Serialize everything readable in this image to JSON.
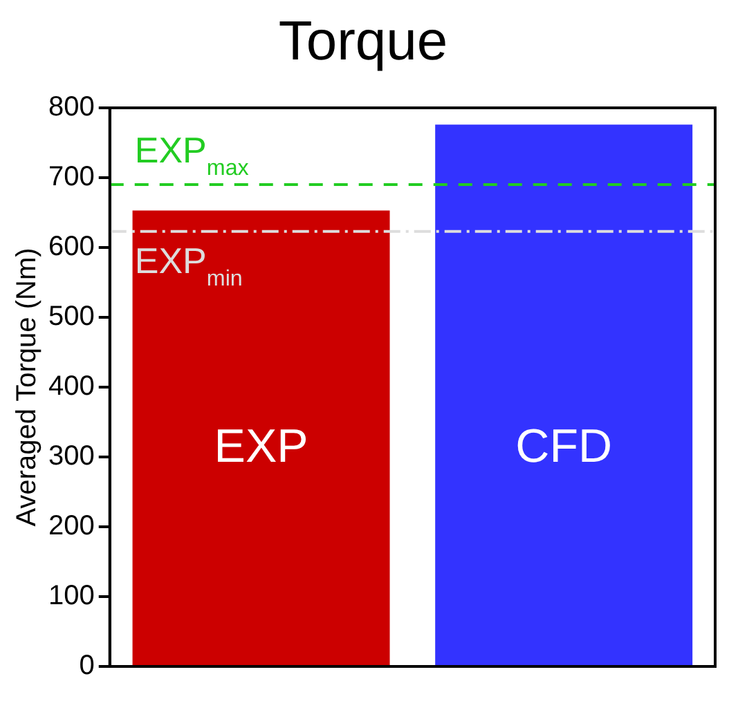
{
  "chart_data": {
    "type": "bar",
    "title": "Torque",
    "ylabel": "Averaged Torque (Nm)",
    "categories": [
      "EXP",
      "CFD"
    ],
    "values": [
      653,
      776
    ],
    "colors": [
      "#cc0000",
      "#3333ff"
    ],
    "ylim": [
      0,
      800
    ],
    "yticks": [
      0,
      100,
      200,
      300,
      400,
      500,
      600,
      700,
      800
    ],
    "grid": false,
    "legend": false,
    "tick_labels": "y",
    "ref_lines": [
      {
        "axis": "y",
        "value": 690,
        "label": "EXP$_{max}$",
        "color": "#22cc22",
        "line_style": "dashed"
      },
      {
        "axis": "y",
        "value": 623,
        "label": "EXP$_{min}$",
        "color": "#dddddd",
        "line_style": "dotted"
      }
    ]
  }
}
